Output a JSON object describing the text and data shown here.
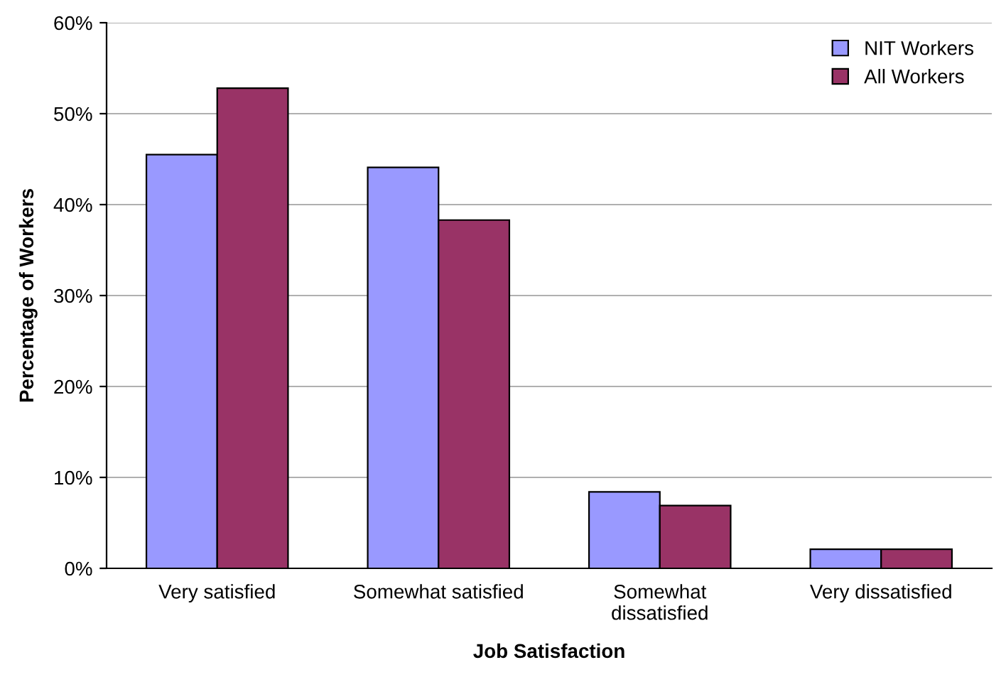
{
  "chart_data": {
    "type": "bar",
    "xlabel": "Job Satisfaction",
    "ylabel": "Percentage of Workers",
    "categories": [
      "Very satisfied",
      "Somewhat satisfied",
      "Somewhat\ndissatisfied",
      "Very dissatisfied"
    ],
    "series": [
      {
        "name": "NIT Workers",
        "color": "#9999ff",
        "values": [
          45.5,
          44.1,
          8.4,
          2.1
        ]
      },
      {
        "name": "All Workers",
        "color": "#993366",
        "values": [
          52.8,
          38.3,
          6.9,
          2.1
        ]
      }
    ],
    "ylim": [
      0,
      60
    ],
    "yticks": [
      {
        "value": 0,
        "label": "0%"
      },
      {
        "value": 10,
        "label": "10%"
      },
      {
        "value": 20,
        "label": "20%"
      },
      {
        "value": 30,
        "label": "30%"
      },
      {
        "value": 40,
        "label": "40%"
      },
      {
        "value": 50,
        "label": "50%"
      },
      {
        "value": 60,
        "label": "60%"
      }
    ],
    "grid": "y",
    "legend": "top right"
  }
}
